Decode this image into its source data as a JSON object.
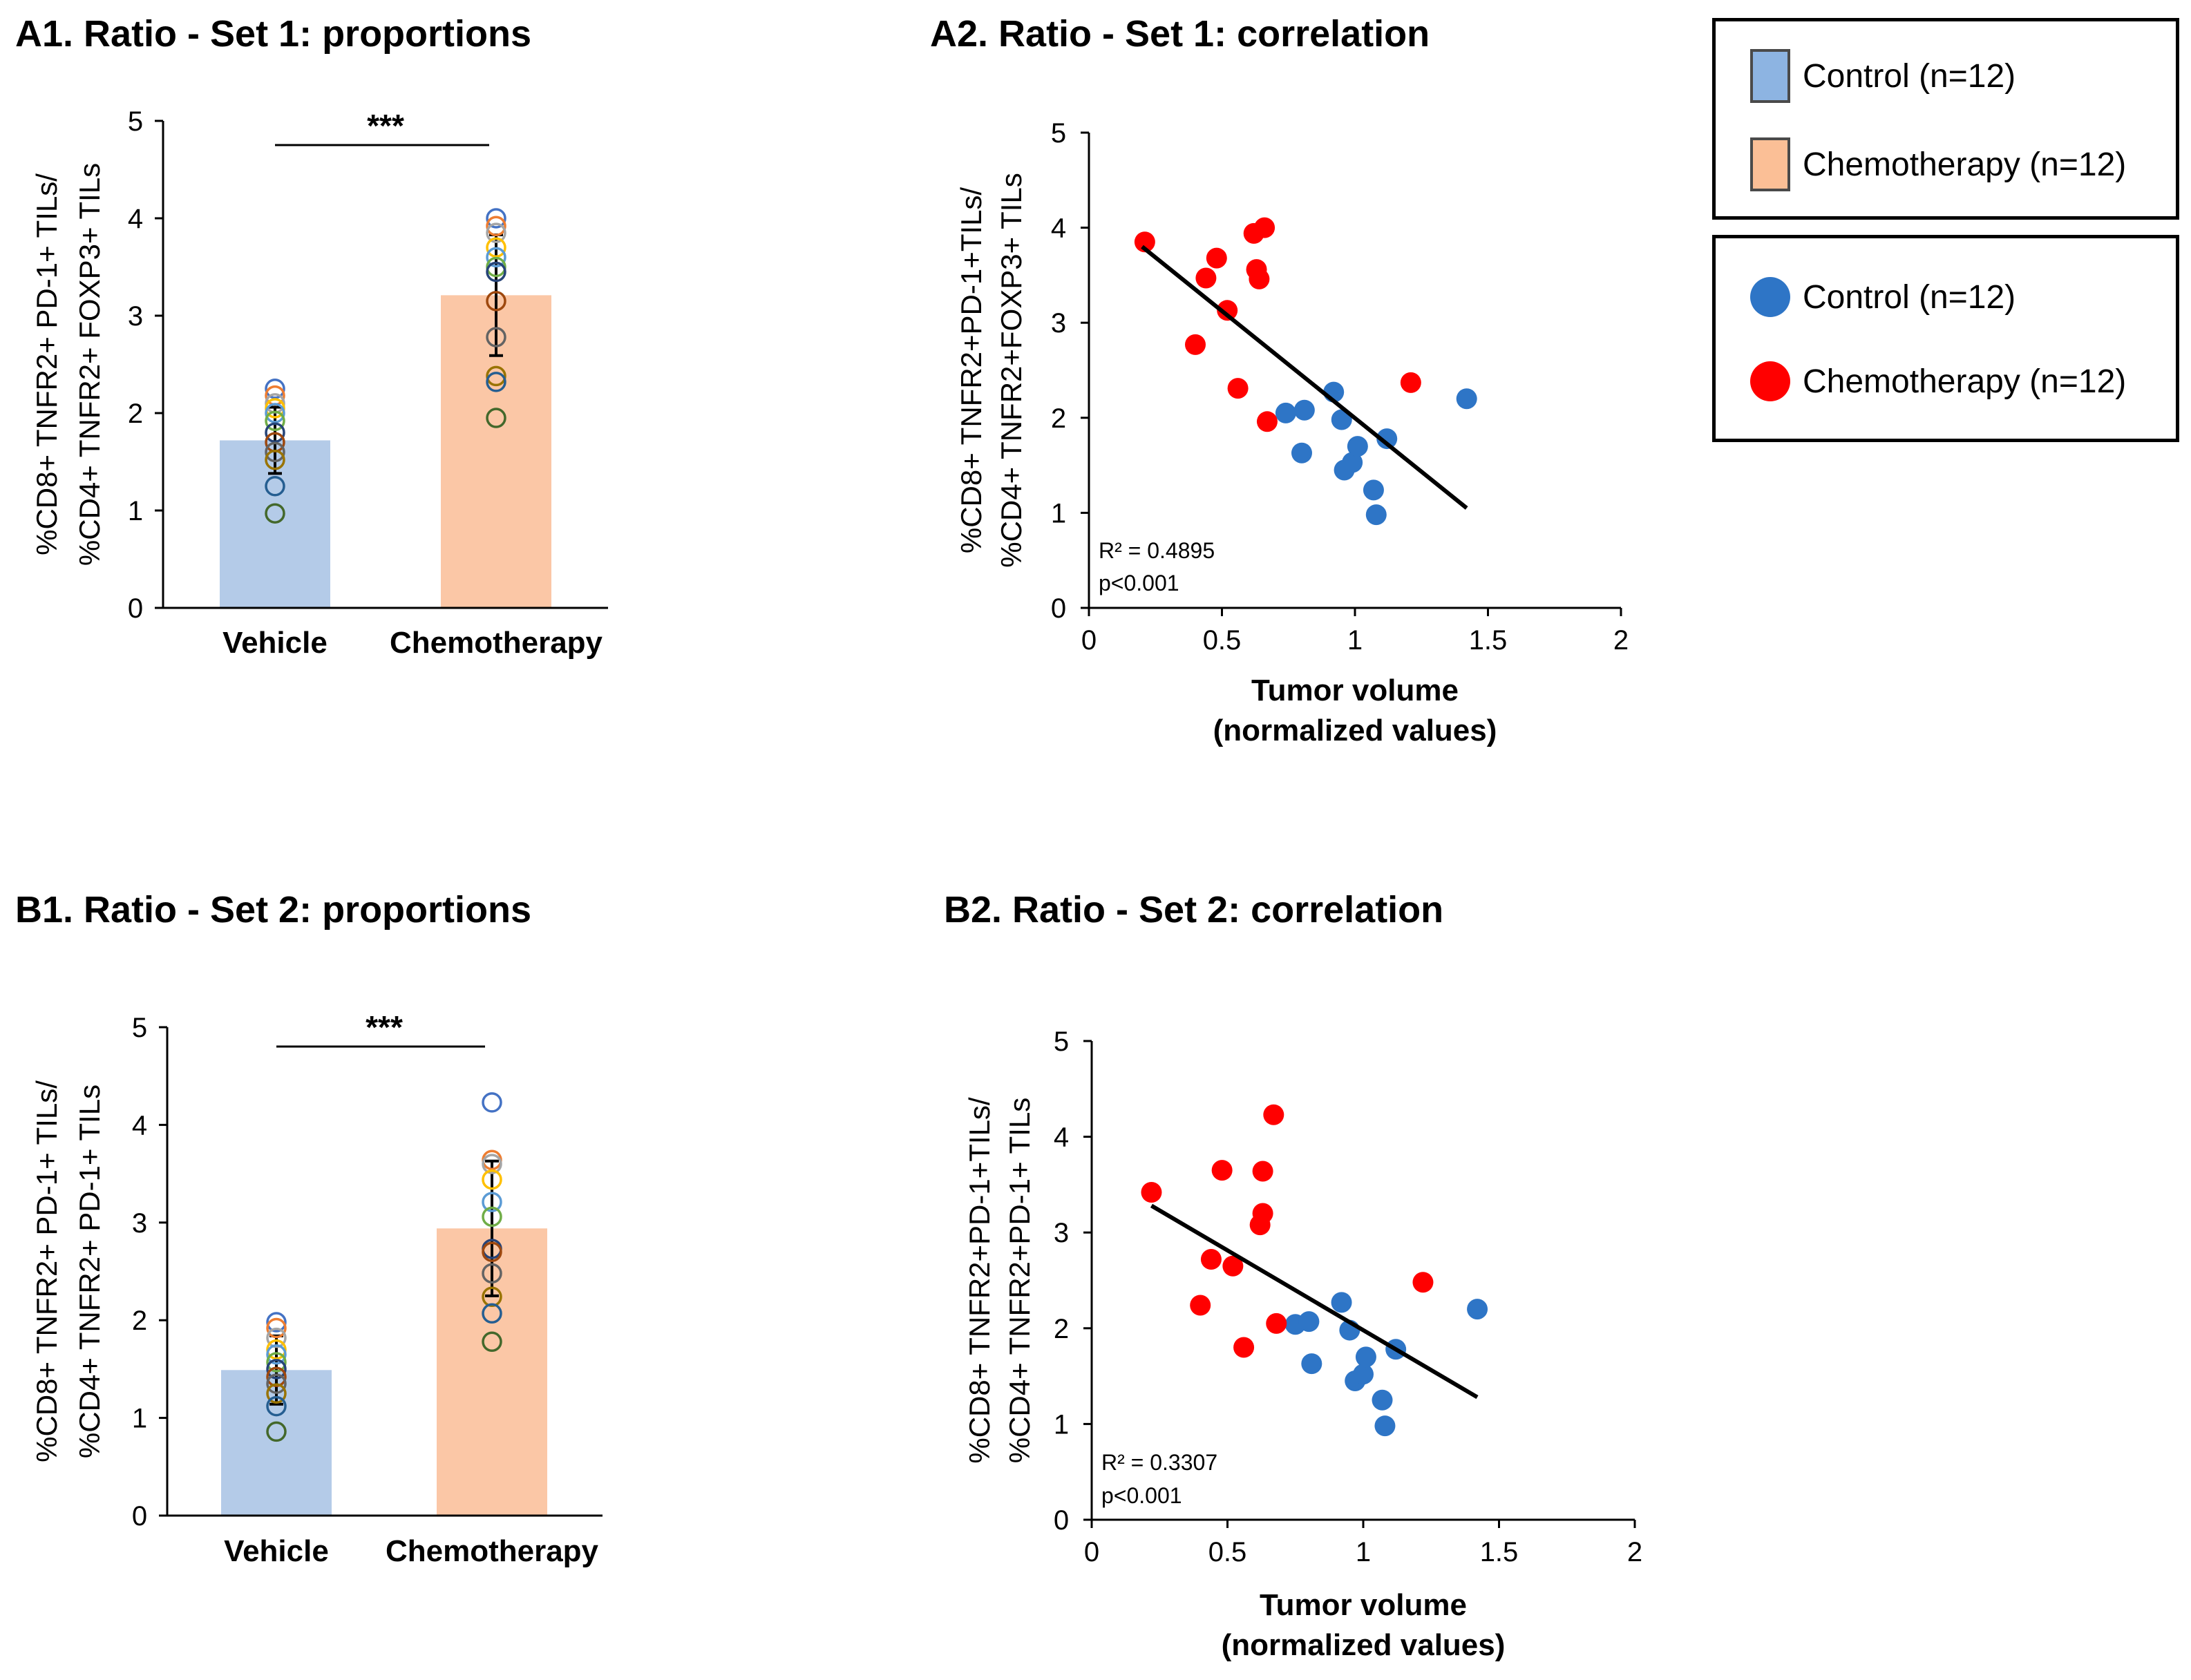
{
  "panels": {
    "A1": {
      "title": "A1. Ratio - Set 1: proportions"
    },
    "A2": {
      "title": "A2. Ratio - Set 1: correlation"
    },
    "B1": {
      "title": "B1. Ratio - Set 2: proportions"
    },
    "B2": {
      "title": "B2. Ratio - Set 2: correlation"
    }
  },
  "legend_bars": {
    "items": [
      {
        "label": "Control (n=12)",
        "color": "#8db4e2"
      },
      {
        "label": "Chemotherapy (n=12)",
        "color": "#fbbf96"
      }
    ]
  },
  "legend_dots": {
    "items": [
      {
        "label": "Control (n=12)",
        "color": "#2e75c6"
      },
      {
        "label": "Chemotherapy (n=12)",
        "color": "#ff0000"
      }
    ]
  },
  "chart_data": [
    {
      "id": "A1",
      "type": "bar",
      "categories": [
        "Vehicle",
        "Chemotherapy"
      ],
      "values": [
        1.72,
        3.21
      ],
      "errors": [
        0.34,
        0.62
      ],
      "bar_colors": [
        "#b4cbe8",
        "#fbc7a6"
      ],
      "ylabel": [
        "%CD8+ TNFR2+ PD-1+ TILs/",
        "%CD4+ TNFR2+ FOXP3+ TILs"
      ],
      "ylim": [
        0,
        5
      ],
      "yticks": [
        0,
        1,
        2,
        3,
        4,
        5
      ],
      "significance": "***",
      "points": [
        [
          2.25,
          2.18,
          2.1,
          2.05,
          2.0,
          1.92,
          1.8,
          1.7,
          1.6,
          1.52,
          1.25,
          0.97
        ],
        [
          4.0,
          3.92,
          3.85,
          3.7,
          3.6,
          3.5,
          3.45,
          3.15,
          2.78,
          2.38,
          2.32,
          1.95
        ]
      ],
      "point_colors": [
        "#4472c4",
        "#ed7d31",
        "#a5a5a5",
        "#ffc000",
        "#5b9bd5",
        "#70ad47",
        "#264478",
        "#9e480e",
        "#636363",
        "#997300",
        "#255e91",
        "#43682b"
      ]
    },
    {
      "id": "A2",
      "type": "scatter",
      "xlabel": [
        "Tumor volume",
        "(normalized values)"
      ],
      "ylabel": [
        "%CD8+ TNFR2+PD-1+TILs/",
        "%CD4+ TNFR2+FOXP3+ TILs"
      ],
      "xlim": [
        0,
        2
      ],
      "ylim": [
        0,
        5
      ],
      "xticks": [
        0,
        0.5,
        1,
        1.5,
        2
      ],
      "yticks": [
        0,
        1,
        2,
        3,
        4,
        5
      ],
      "series": [
        {
          "name": "Control (n=12)",
          "color": "#2e75c6",
          "x": [
            0.74,
            0.81,
            0.92,
            0.95,
            0.99,
            1.01,
            0.8,
            0.96,
            1.07,
            1.08,
            1.12,
            1.42
          ],
          "y": [
            2.05,
            2.08,
            2.27,
            1.98,
            1.53,
            1.7,
            1.63,
            1.45,
            1.24,
            0.98,
            1.78,
            2.2
          ]
        },
        {
          "name": "Chemotherapy (n=12)",
          "color": "#ff0000",
          "x": [
            0.21,
            0.4,
            0.44,
            0.48,
            0.52,
            0.56,
            0.62,
            0.63,
            0.64,
            0.66,
            0.67,
            1.21
          ],
          "y": [
            3.85,
            2.77,
            3.47,
            3.68,
            3.13,
            2.31,
            3.94,
            3.56,
            3.46,
            4.0,
            1.96,
            2.37
          ]
        }
      ],
      "trendline": {
        "x": [
          0.2,
          1.42
        ],
        "y": [
          3.8,
          1.05
        ]
      },
      "r2_label": "R² = 0.4895",
      "p_label": "p<0.001"
    },
    {
      "id": "B1",
      "type": "bar",
      "categories": [
        "Vehicle",
        "Chemotherapy"
      ],
      "values": [
        1.49,
        2.94
      ],
      "errors": [
        0.35,
        0.69
      ],
      "bar_colors": [
        "#b4cbe8",
        "#fbc7a6"
      ],
      "ylabel": [
        "%CD8+ TNFR2+ PD-1+ TILs/",
        "%CD4+ TNFR2+ PD-1+ TILs"
      ],
      "ylim": [
        0,
        5
      ],
      "yticks": [
        0,
        1,
        2,
        3,
        4,
        5
      ],
      "significance": "***",
      "points": [
        [
          1.98,
          1.92,
          1.82,
          1.7,
          1.65,
          1.57,
          1.5,
          1.42,
          1.35,
          1.25,
          1.12,
          0.86
        ],
        [
          4.23,
          3.64,
          3.6,
          3.44,
          3.21,
          3.06,
          2.73,
          2.7,
          2.48,
          2.24,
          2.07,
          1.78
        ]
      ],
      "point_colors": [
        "#4472c4",
        "#ed7d31",
        "#a5a5a5",
        "#ffc000",
        "#5b9bd5",
        "#70ad47",
        "#264478",
        "#9e480e",
        "#636363",
        "#997300",
        "#255e91",
        "#43682b"
      ]
    },
    {
      "id": "B2",
      "type": "scatter",
      "xlabel": [
        "Tumor volume",
        "(normalized values)"
      ],
      "ylabel": [
        "%CD8+ TNFR2+PD-1+TILs/",
        "%CD4+ TNFR2+PD-1+ TILs"
      ],
      "xlim": [
        0,
        2
      ],
      "ylim": [
        0,
        5
      ],
      "xticks": [
        0,
        0.5,
        1,
        1.5,
        2
      ],
      "yticks": [
        0,
        1,
        2,
        3,
        4,
        5
      ],
      "series": [
        {
          "name": "Control (n=12)",
          "color": "#2e75c6",
          "x": [
            0.75,
            0.8,
            0.92,
            0.95,
            0.97,
            1.0,
            1.01,
            0.81,
            1.07,
            1.08,
            1.12,
            1.42
          ],
          "y": [
            2.04,
            2.07,
            2.27,
            1.98,
            1.45,
            1.52,
            1.7,
            1.63,
            1.25,
            0.98,
            1.78,
            2.2
          ]
        },
        {
          "name": "Chemotherapy (n=12)",
          "color": "#ff0000",
          "x": [
            0.22,
            0.4,
            0.44,
            0.48,
            0.52,
            0.56,
            0.62,
            0.63,
            0.63,
            0.67,
            0.68,
            1.22
          ],
          "y": [
            3.42,
            2.24,
            2.72,
            3.65,
            2.65,
            1.8,
            3.08,
            3.2,
            3.64,
            4.23,
            2.05,
            2.48
          ]
        }
      ],
      "trendline": {
        "x": [
          0.22,
          1.42
        ],
        "y": [
          3.28,
          1.28
        ]
      },
      "r2_label": "R² = 0.3307",
      "p_label": "p<0.001"
    }
  ]
}
